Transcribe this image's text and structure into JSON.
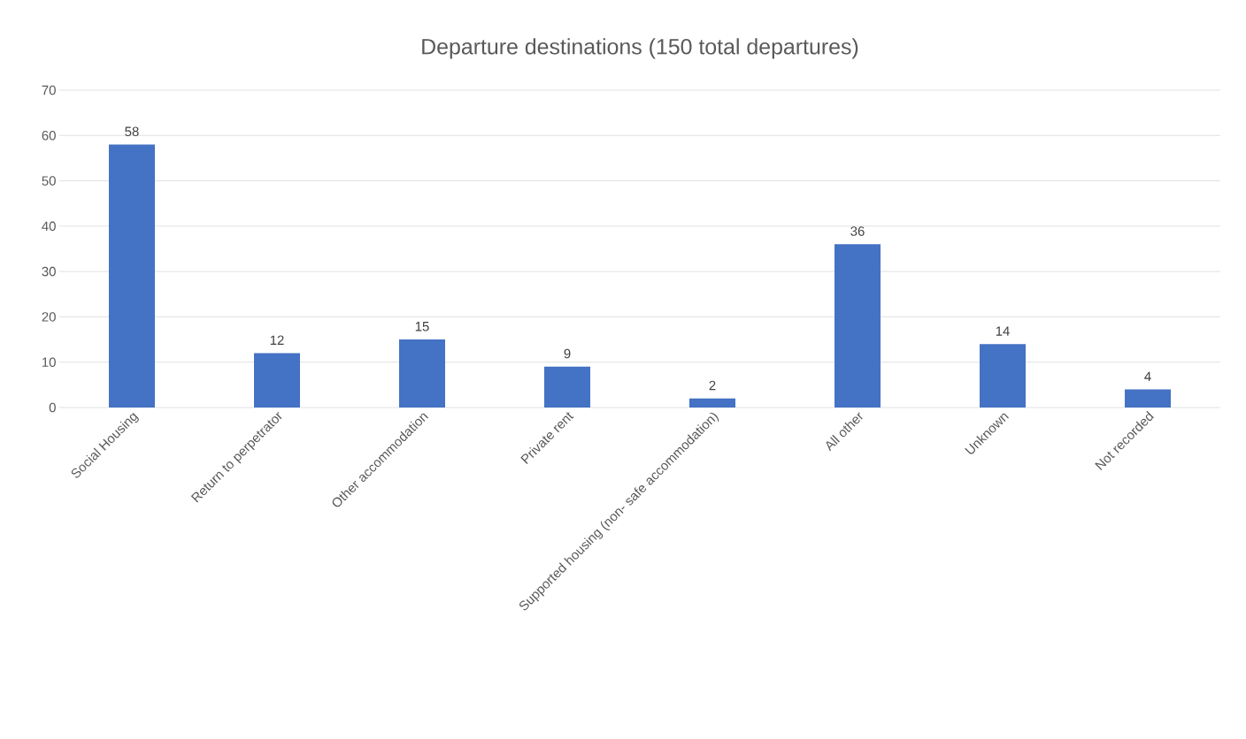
{
  "chart_data": {
    "type": "bar",
    "title": "Departure destinations (150 total departures)",
    "categories": [
      "Social Housing",
      "Return to perpetrator",
      "Other accommodation",
      "Private rent",
      "Supported housing (non- safe accommodation)",
      "All other",
      "Unknown",
      "Not recorded"
    ],
    "values": [
      58,
      12,
      15,
      9,
      2,
      36,
      14,
      4
    ],
    "color": "#4472c4",
    "ylim": [
      0,
      70
    ],
    "yticks": [
      0,
      10,
      20,
      30,
      40,
      50,
      60,
      70
    ],
    "grid": "y",
    "data_labels": true
  }
}
